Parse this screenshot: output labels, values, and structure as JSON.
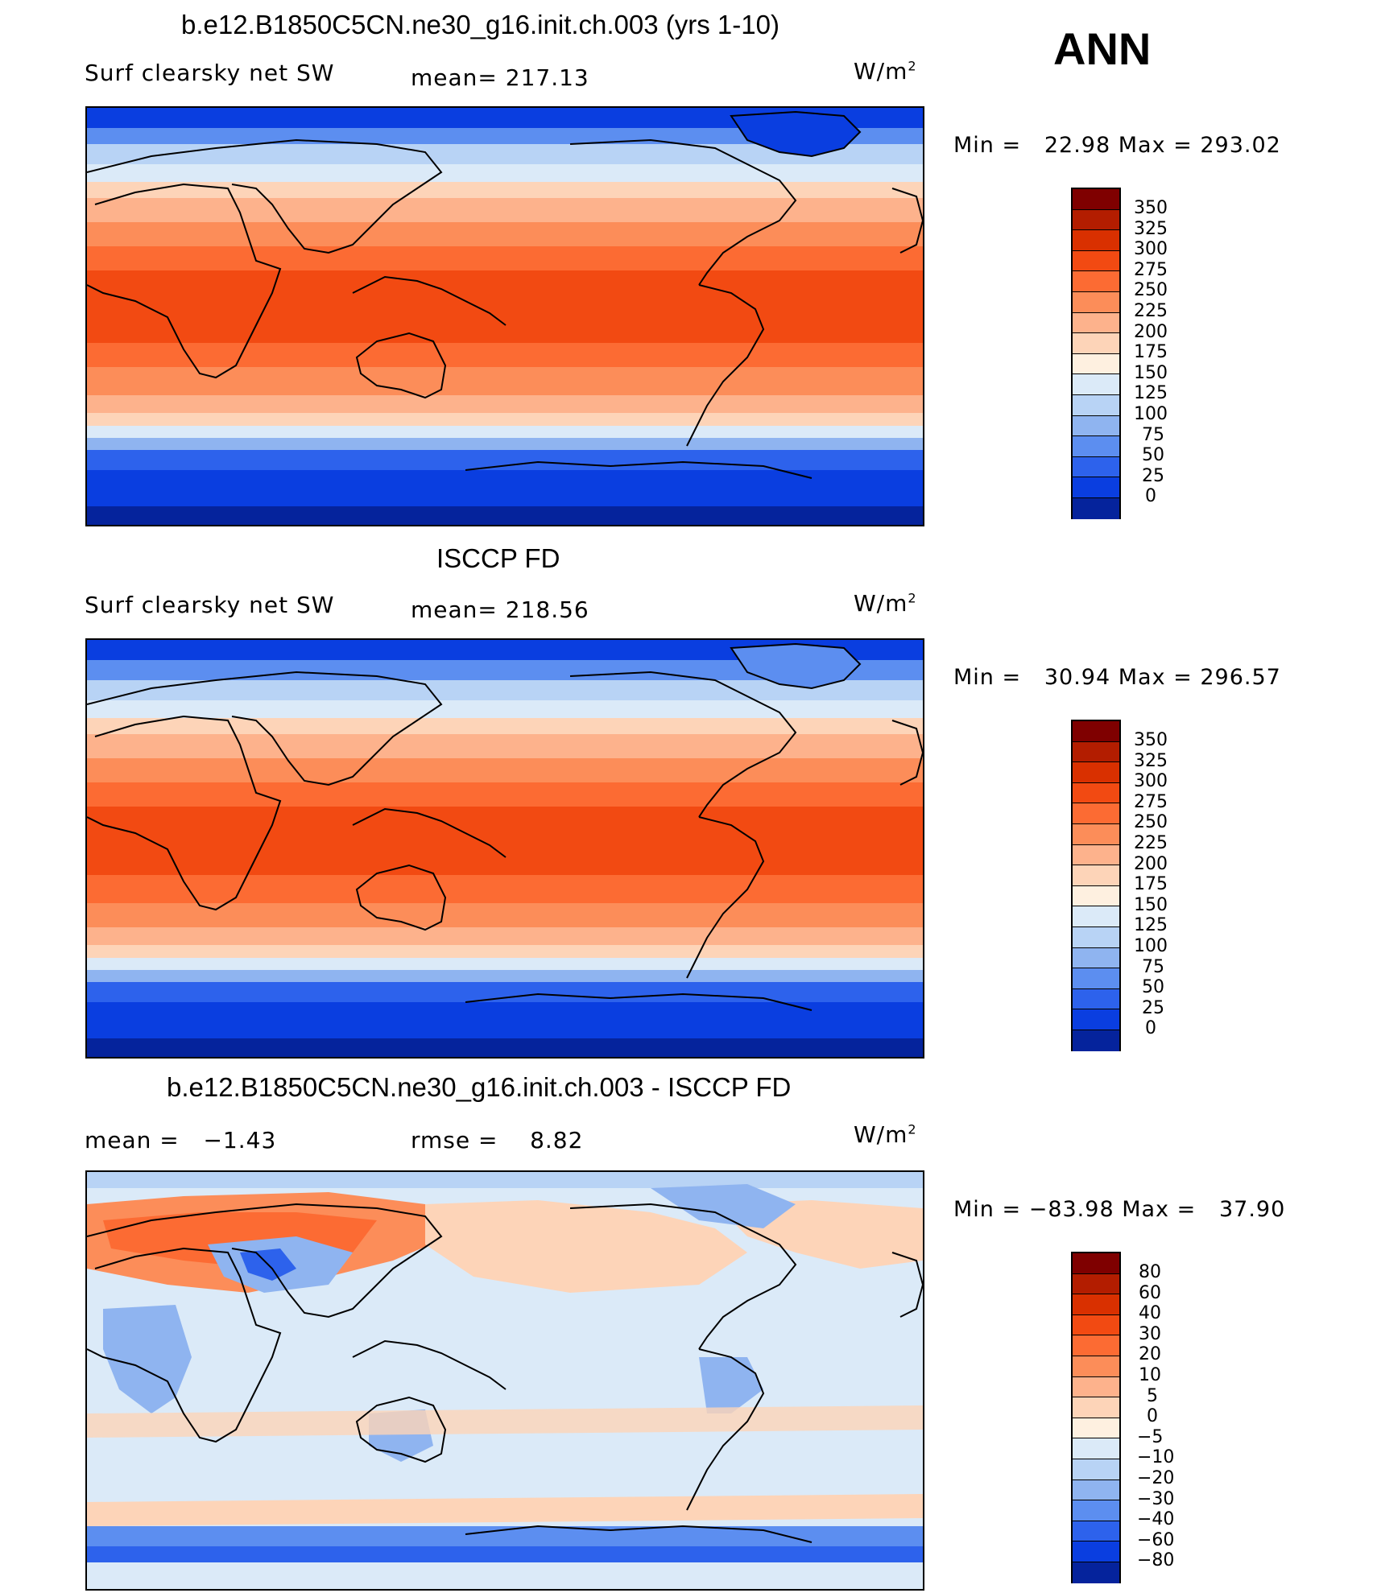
{
  "season": "ANN",
  "units_base": "W/m",
  "units_exp": "2",
  "panels": [
    {
      "title": "b.e12.B1850C5CN.ne30_g16.init.ch.003 (yrs 1-10)",
      "left_label": "Surf clearsky net SW",
      "center_label": "mean= 217.13",
      "minmax": "Min =   22.98 Max = 293.02",
      "colorbar": {
        "levels": [
          "350",
          "325",
          "300",
          "275",
          "250",
          "225",
          "200",
          "175",
          "150",
          "125",
          "100",
          "75",
          "50",
          "25",
          "0"
        ],
        "colors": [
          "#7f0000",
          "#b31d00",
          "#d93000",
          "#f24a12",
          "#fc6b33",
          "#fc8d59",
          "#fdb28c",
          "#fdd4b8",
          "#fef0e0",
          "#dbeaf8",
          "#b8d3f5",
          "#8fb4f0",
          "#5c8ef0",
          "#2d62ec",
          "#0a3ee0",
          "#05239c"
        ]
      }
    },
    {
      "title": "ISCCP FD",
      "left_label": "Surf clearsky net SW",
      "center_label": "mean= 218.56",
      "minmax": "Min =   30.94 Max = 296.57",
      "colorbar": {
        "levels": [
          "350",
          "325",
          "300",
          "275",
          "250",
          "225",
          "200",
          "175",
          "150",
          "125",
          "100",
          "75",
          "50",
          "25",
          "0"
        ],
        "colors": [
          "#7f0000",
          "#b31d00",
          "#d93000",
          "#f24a12",
          "#fc6b33",
          "#fc8d59",
          "#fdb28c",
          "#fdd4b8",
          "#fef0e0",
          "#dbeaf8",
          "#b8d3f5",
          "#8fb4f0",
          "#5c8ef0",
          "#2d62ec",
          "#0a3ee0",
          "#05239c"
        ]
      }
    },
    {
      "title": "b.e12.B1850C5CN.ne30_g16.init.ch.003 - ISCCP FD",
      "left_label": "mean =   −1.43",
      "center_label": "rmse =    8.82",
      "minmax": "Min = −83.98 Max =   37.90",
      "colorbar": {
        "levels": [
          "80",
          "60",
          "40",
          "30",
          "20",
          "10",
          "5",
          "0",
          "−5",
          "−10",
          "−20",
          "−30",
          "−40",
          "−60",
          "−80"
        ],
        "colors": [
          "#7f0000",
          "#b31d00",
          "#d93000",
          "#f24a12",
          "#fc6b33",
          "#fc8d59",
          "#fdb28c",
          "#fdd4b8",
          "#fef0e0",
          "#dbeaf8",
          "#b8d3f5",
          "#8fb4f0",
          "#5c8ef0",
          "#2d62ec",
          "#0a3ee0",
          "#05239c"
        ]
      }
    }
  ]
}
